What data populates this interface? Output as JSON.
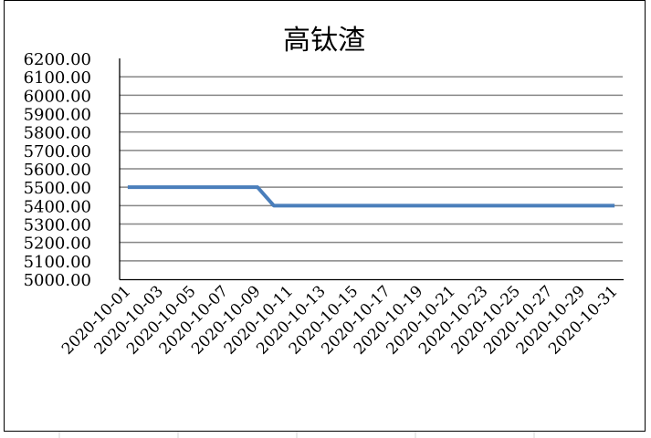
{
  "chart_data": {
    "type": "line",
    "title": "高钛渣",
    "xlabel": "",
    "ylabel": "",
    "ylim": [
      5000,
      6200
    ],
    "y_ticks": [
      "5000.00",
      "5100.00",
      "5200.00",
      "5300.00",
      "5400.00",
      "5500.00",
      "5600.00",
      "5700.00",
      "5800.00",
      "5900.00",
      "6000.00",
      "6100.00",
      "6200.00"
    ],
    "x": [
      "2020-10-01",
      "2020-10-02",
      "2020-10-03",
      "2020-10-04",
      "2020-10-05",
      "2020-10-06",
      "2020-10-07",
      "2020-10-08",
      "2020-10-09",
      "2020-10-10",
      "2020-10-11",
      "2020-10-12",
      "2020-10-13",
      "2020-10-14",
      "2020-10-15",
      "2020-10-16",
      "2020-10-17",
      "2020-10-18",
      "2020-10-19",
      "2020-10-20",
      "2020-10-21",
      "2020-10-22",
      "2020-10-23",
      "2020-10-24",
      "2020-10-25",
      "2020-10-26",
      "2020-10-27",
      "2020-10-28",
      "2020-10-29",
      "2020-10-30",
      "2020-10-31"
    ],
    "x_tick_labels": [
      "2020-10-01",
      "2020-10-03",
      "2020-10-05",
      "2020-10-07",
      "2020-10-09",
      "2020-10-11",
      "2020-10-13",
      "2020-10-15",
      "2020-10-17",
      "2020-10-19",
      "2020-10-21",
      "2020-10-23",
      "2020-10-25",
      "2020-10-27",
      "2020-10-29",
      "2020-10-31"
    ],
    "series": [
      {
        "values": [
          5500,
          5500,
          5500,
          5500,
          5500,
          5500,
          5500,
          5500,
          5500,
          5400,
          5400,
          5400,
          5400,
          5400,
          5400,
          5400,
          5400,
          5400,
          5400,
          5400,
          5400,
          5400,
          5400,
          5400,
          5400,
          5400,
          5400,
          5400,
          5400,
          5400,
          5400
        ],
        "color": "#4a7ebb"
      }
    ],
    "grid": true,
    "gridline_color": "#868686",
    "legend": "none"
  }
}
